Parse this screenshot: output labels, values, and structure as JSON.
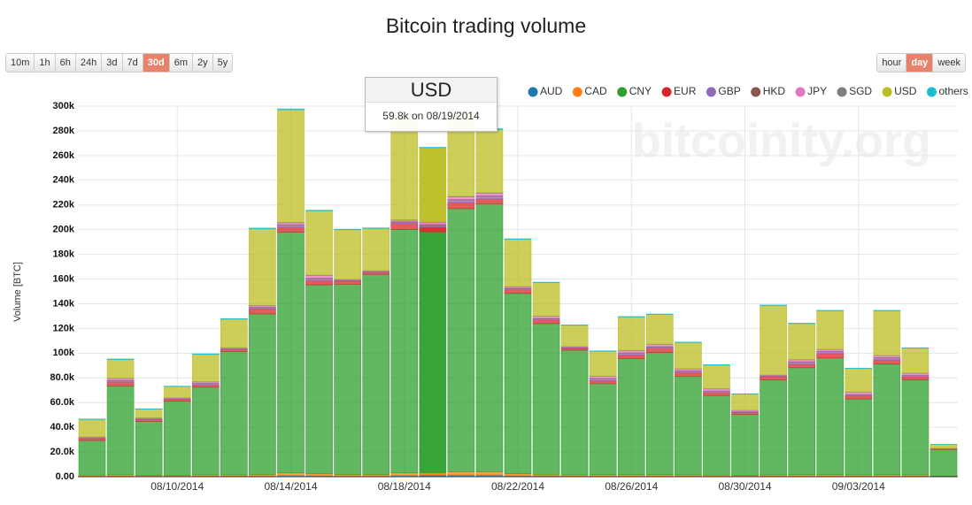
{
  "chart_data": {
    "type": "stacked-bar",
    "title": "Bitcoin trading volume",
    "ylabel": "Volume [BTC]",
    "watermark": "bitcoinity.org",
    "categories": [
      null,
      null,
      null,
      "08/10/2014",
      null,
      null,
      null,
      "08/14/2014",
      null,
      null,
      null,
      "08/18/2014",
      null,
      null,
      null,
      "08/22/2014",
      null,
      null,
      null,
      "08/26/2014",
      null,
      null,
      null,
      "08/30/2014",
      null,
      null,
      null,
      "09/03/2014",
      null,
      null,
      null
    ],
    "ylim": [
      0,
      300000
    ],
    "yticks": [
      {
        "value": 0,
        "label": "0.00"
      },
      {
        "value": 20000,
        "label": "20.0k"
      },
      {
        "value": 40000,
        "label": "40.0k"
      },
      {
        "value": 60000,
        "label": "60.0k"
      },
      {
        "value": 80000,
        "label": "80.0k"
      },
      {
        "value": 100000,
        "label": "100k"
      },
      {
        "value": 120000,
        "label": "120k"
      },
      {
        "value": 140000,
        "label": "140k"
      },
      {
        "value": 160000,
        "label": "160k"
      },
      {
        "value": 180000,
        "label": "180k"
      },
      {
        "value": 200000,
        "label": "200k"
      },
      {
        "value": 220000,
        "label": "220k"
      },
      {
        "value": 240000,
        "label": "240k"
      },
      {
        "value": 260000,
        "label": "260k"
      },
      {
        "value": 280000,
        "label": "280k"
      },
      {
        "value": 300000,
        "label": "300k"
      }
    ],
    "grid": true,
    "highlight": 12,
    "series": [
      {
        "name": "AUD",
        "color": "#1f77b4",
        "values": [
          500,
          500,
          400,
          400,
          500,
          500,
          600,
          1000,
          800,
          600,
          600,
          1000,
          1200,
          1500,
          1500,
          800,
          700,
          500,
          600,
          600,
          600,
          500,
          500,
          400,
          500,
          600,
          600,
          500,
          600,
          500,
          200
        ]
      },
      {
        "name": "CAD",
        "color": "#ff7f0e",
        "values": [
          800,
          1000,
          700,
          700,
          900,
          900,
          1200,
          2000,
          1500,
          1200,
          1200,
          2000,
          2000,
          2500,
          2500,
          1500,
          1200,
          900,
          1000,
          1000,
          1000,
          900,
          800,
          700,
          900,
          1000,
          1000,
          900,
          1000,
          900,
          300
        ]
      },
      {
        "name": "CNY",
        "color": "#2ca02c",
        "values": [
          28000,
          72000,
          43700,
          60000,
          71000,
          100000,
          130000,
          195000,
          153000,
          154000,
          162000,
          197000,
          195000,
          213000,
          217000,
          146000,
          122000,
          101000,
          73700,
          94000,
          99000,
          80000,
          64400,
          49400,
          77000,
          86600,
          94500,
          61600,
          89500,
          77000,
          21500
        ]
      },
      {
        "name": "EUR",
        "color": "#d62728",
        "values": [
          1500,
          3000,
          1500,
          1500,
          2000,
          1500,
          4000,
          4000,
          3500,
          2500,
          1500,
          5000,
          4000,
          5000,
          4000,
          3000,
          3000,
          1500,
          2500,
          3000,
          3500,
          3000,
          2500,
          1500,
          2500,
          3000,
          3500,
          2500,
          3500,
          2500,
          500
        ]
      },
      {
        "name": "GBP",
        "color": "#9467bd",
        "values": [
          500,
          1000,
          500,
          500,
          1000,
          500,
          1000,
          1500,
          1500,
          500,
          500,
          1000,
          1500,
          2000,
          2000,
          1000,
          1000,
          500,
          1500,
          1500,
          1000,
          1000,
          1000,
          500,
          500,
          1500,
          1500,
          1000,
          1500,
          1000,
          200
        ]
      },
      {
        "name": "HKD",
        "color": "#8c564b",
        "values": [
          200,
          500,
          200,
          200,
          300,
          300,
          500,
          500,
          500,
          300,
          300,
          500,
          500,
          500,
          500,
          500,
          400,
          300,
          400,
          400,
          400,
          400,
          300,
          200,
          300,
          400,
          400,
          300,
          400,
          300,
          100
        ]
      },
      {
        "name": "JPY",
        "color": "#e377c2",
        "values": [
          500,
          1500,
          500,
          500,
          1000,
          500,
          1000,
          1500,
          2000,
          500,
          500,
          1000,
          2000,
          2000,
          2000,
          1000,
          1500,
          500,
          1500,
          1500,
          1500,
          1500,
          1500,
          1000,
          500,
          1500,
          1500,
          1500,
          1500,
          1500,
          200
        ]
      },
      {
        "name": "SGD",
        "color": "#7f7f7f",
        "values": [
          300,
          300,
          200,
          200,
          300,
          300,
          400,
          500,
          400,
          300,
          300,
          500,
          300,
          500,
          500,
          300,
          300,
          300,
          300,
          300,
          300,
          300,
          300,
          200,
          300,
          300,
          300,
          300,
          300,
          300,
          100
        ]
      },
      {
        "name": "USD",
        "color": "#bcbd22",
        "values": [
          14000,
          15000,
          7000,
          9000,
          22000,
          23000,
          62000,
          91000,
          52000,
          40000,
          34000,
          84000,
          59800,
          68000,
          51000,
          38000,
          27000,
          17000,
          20000,
          27000,
          24000,
          21000,
          19000,
          13000,
          56000,
          29000,
          31000,
          19000,
          36000,
          20000,
          3000
        ]
      },
      {
        "name": "others",
        "color": "#17becf",
        "values": [
          400,
          500,
          300,
          300,
          500,
          500,
          600,
          800,
          600,
          500,
          500,
          800,
          400,
          800,
          800,
          500,
          400,
          400,
          400,
          400,
          400,
          400,
          400,
          300,
          500,
          400,
          400,
          300,
          400,
          400,
          100
        ]
      }
    ],
    "tooltip": {
      "title": "USD",
      "text": "59.8k on 08/19/2014"
    },
    "ranges": [
      "10m",
      "1h",
      "6h",
      "24h",
      "3d",
      "7d",
      "30d",
      "6m",
      "2y",
      "5y"
    ],
    "range_selected": 6,
    "units": [
      "hour",
      "day",
      "week"
    ],
    "unit_selected": 1
  }
}
